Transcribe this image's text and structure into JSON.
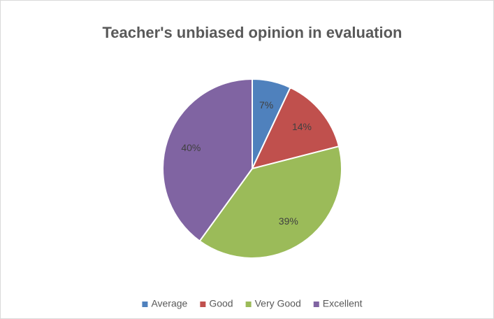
{
  "chart_data": {
    "type": "pie",
    "title": "Teacher's unbiased opinion in evaluation",
    "categories": [
      "Average",
      "Good",
      "Very Good",
      "Excellent"
    ],
    "values": [
      7,
      14,
      39,
      40
    ],
    "value_labels": [
      "7%",
      "14%",
      "39%",
      "40%"
    ],
    "colors": [
      "#4f81bd",
      "#c0504d",
      "#9bbb59",
      "#8064a2"
    ],
    "legend": "bottom"
  }
}
